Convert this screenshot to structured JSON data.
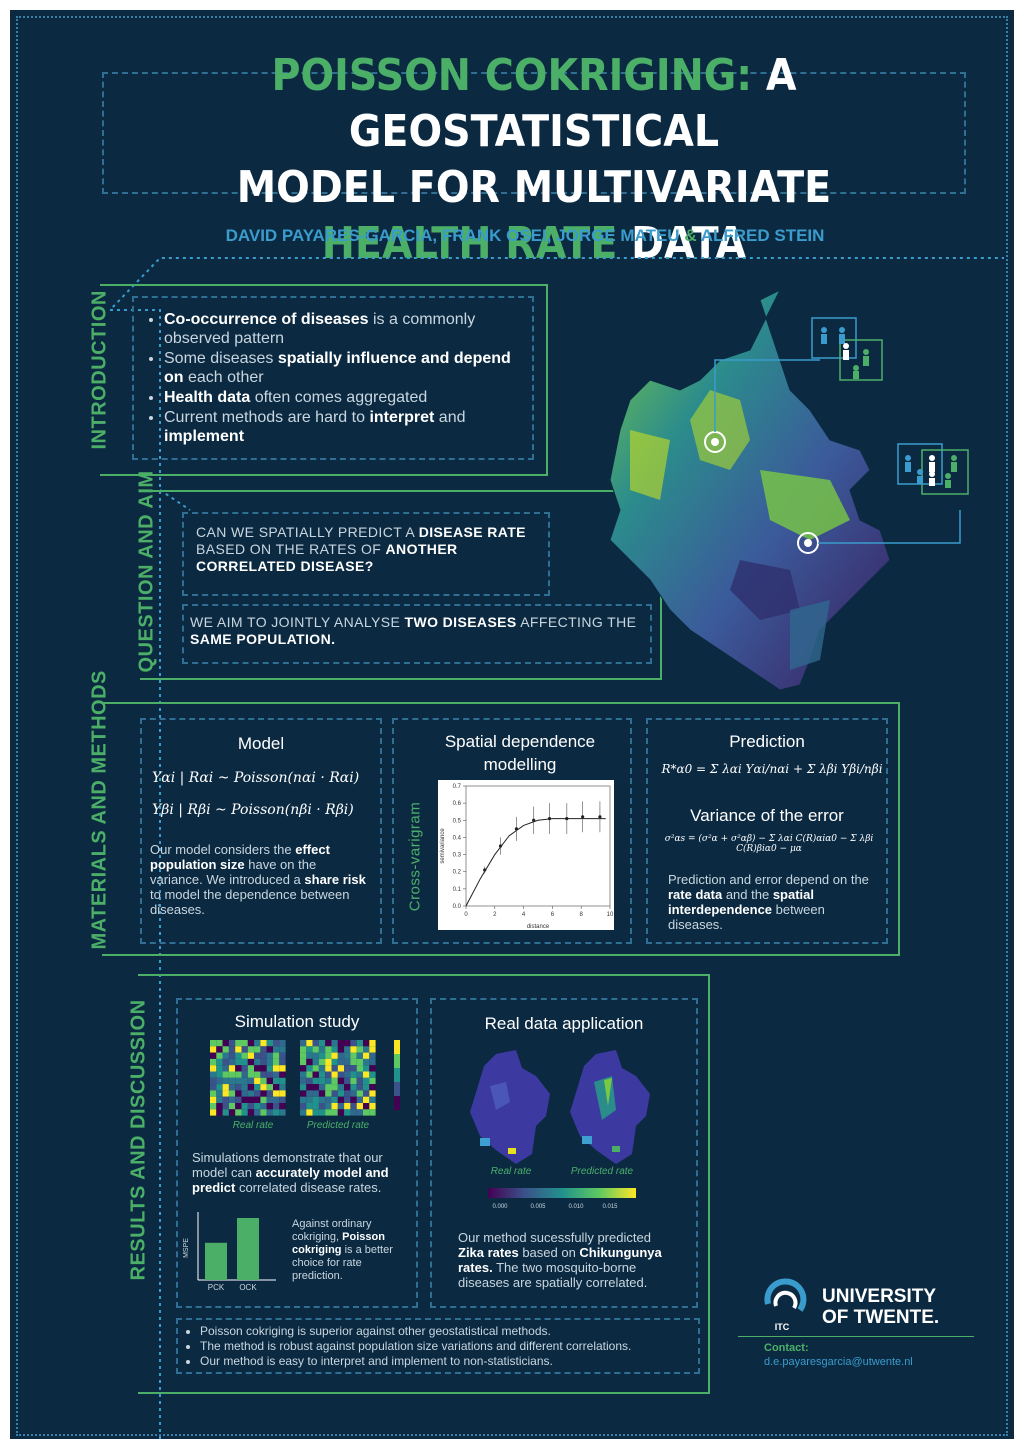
{
  "title": {
    "line1_hl": "POISSON COKRIGING:",
    "line1_rest": "A GEOSTATISTICAL",
    "line2": "MODEL FOR MULTIVARIATE",
    "line3_hl": "HEALTH RATE",
    "line3_rest": "DATA"
  },
  "authors": {
    "names": "DAVID PAYARES-GARCIA, FRANK OSEI, JORGE MATEU",
    "amp": "&",
    "last": "ALFRED STEIN"
  },
  "sections": {
    "introduction": "INTRODUCTION",
    "question": "QUESTION AND AIM",
    "methods": "MATERIALS AND METHODS",
    "results": "RESULTS AND DISCUSSION"
  },
  "intro": {
    "b1_bold": "Co-occurrence of diseases",
    "b1_rest": " is a commonly observed pattern",
    "b2_pre": "Some diseases ",
    "b2_bold": "spatially influence and depend on",
    "b2_rest": " each other",
    "b3_bold": "Health data",
    "b3_rest": " often comes aggregated",
    "b4_pre": "Current methods are hard to ",
    "b4_bold1": "interpret",
    "b4_mid": " and ",
    "b4_bold2": "implement"
  },
  "question": {
    "q_pre": "CAN WE SPATIALLY PREDICT A ",
    "q_bold1": "DISEASE RATE",
    "q_mid": " BASED ON THE RATES OF ",
    "q_bold2": "ANOTHER CORRELATED DISEASE?",
    "aim_pre": "WE AIM TO JOINTLY ANALYSE ",
    "aim_bold1": "TWO DISEASES",
    "aim_mid": " AFFECTING THE ",
    "aim_bold2": "SAME POPULATION."
  },
  "model": {
    "heading": "Model",
    "eq1": "Yαi | Rαi ~  Poisson(nαi · Rαi)",
    "eq2": "Yβi | Rβi ~  Poisson(nβi · Rβi)",
    "t_pre": "Our model considers the ",
    "t_b1": "effect population size",
    "t_mid1": " have on the variance. We introduced a ",
    "t_b2": "share risk",
    "t_rest": " to model the dependence between diseases."
  },
  "spatial": {
    "heading": "Spatial dependence modelling",
    "side_label": "Cross-varigram"
  },
  "prediction": {
    "heading": "Prediction",
    "eq": "R*α0 = Σ λαi Yαi/nαi + Σ λβi Yβi/nβi",
    "var_heading": "Variance of the error",
    "var_eq": "σ²αs = (σ²α + σ²αβ) − Σ λαi C(R)αiα0 − Σ λβi C(R)βiα0 − μα",
    "t_pre": "Prediction and error depend on the ",
    "t_b1": "rate data",
    "t_mid": " and the ",
    "t_b2": "spatial interdependence",
    "t_rest": " between diseases."
  },
  "chart_data": [
    {
      "type": "line",
      "title": "",
      "xlabel": "distance",
      "ylabel": "semivariance",
      "xlim": [
        0,
        10
      ],
      "ylim": [
        0,
        0.7
      ],
      "x_ticks": [
        "0",
        "2",
        "4",
        "6",
        "8",
        "10"
      ],
      "y_ticks": [
        "0.0",
        "0.1",
        "0.2",
        "0.3",
        "0.4",
        "0.5",
        "0.6",
        "0.7"
      ],
      "points": {
        "x": [
          1.3,
          2.4,
          3.5,
          4.7,
          5.8,
          7.0,
          8.1,
          9.3
        ],
        "y": [
          0.21,
          0.35,
          0.45,
          0.5,
          0.51,
          0.51,
          0.52,
          0.52
        ]
      },
      "error": [
        0.02,
        0.05,
        0.07,
        0.08,
        0.09,
        0.09,
        0.09,
        0.09
      ],
      "curve": {
        "x": [
          0,
          1,
          2,
          3,
          4,
          5,
          6,
          7,
          8,
          9,
          9.7
        ],
        "y": [
          0,
          0.16,
          0.3,
          0.41,
          0.47,
          0.5,
          0.51,
          0.51,
          0.51,
          0.51,
          0.51
        ]
      }
    },
    {
      "type": "bar",
      "ylabel": "MSPE",
      "categories": [
        "PCK",
        "OCK"
      ],
      "values": [
        0.6,
        1.0
      ]
    }
  ],
  "simulation": {
    "heading": "Simulation study",
    "cap1": "Real rate",
    "cap2": "Predicted rate",
    "t_pre": "Simulations demonstrate that our model can ",
    "t_b1": "accurately model and predict",
    "t_rest": " correlated disease rates.",
    "side_pre": "Against ordinary cokriging, ",
    "side_b": "Poisson cokriging",
    "side_rest": " is a better choice for rate prediction."
  },
  "realdata": {
    "heading": "Real data application",
    "cap1": "Real rate",
    "cap2": "Predicted rate",
    "scale": [
      "0.000",
      "0.005",
      "0.010",
      "0.015"
    ],
    "t_pre": "Our method sucessfully predicted ",
    "t_b1": "Zika rates",
    "t_mid": " based on ",
    "t_b2": "Chikungunya rates.",
    "t_rest": " The two mosquito-borne diseases are spatially correlated."
  },
  "conclusions": [
    "Poisson cokriging is superior against other geostatistical methods.",
    "The method is robust against population size variations and different correlations.",
    "Our method is easy to interpret and implement to non-statisticians."
  ],
  "university": {
    "line1": "UNIVERSITY",
    "line2": "OF TWENTE.",
    "logo_text": "ITC"
  },
  "contact": {
    "label": "Contact:",
    "email": "d.e.payaresgarcia@utwente.nl"
  },
  "colors": {
    "background": "#0b2a42",
    "green": "#4caf68",
    "blue": "#3a9ccc"
  }
}
